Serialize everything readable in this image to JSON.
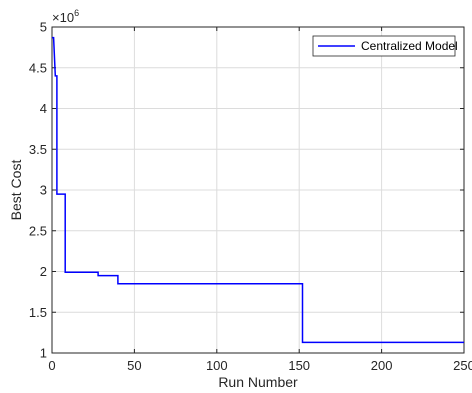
{
  "chart_data": {
    "type": "line",
    "xlabel": "Run Number",
    "ylabel": "Best Cost",
    "xlim": [
      0,
      250
    ],
    "ylim": [
      1,
      5
    ],
    "xticks": [
      "0",
      "50",
      "100",
      "150",
      "200",
      "250"
    ],
    "yticks": [
      "1",
      "1.5",
      "2",
      "2.5",
      "3",
      "3.5",
      "4",
      "4.5",
      "5"
    ],
    "y_multiplier": {
      "base": "×10",
      "exponent": "6"
    },
    "grid": true,
    "legend_position": "top-right",
    "series": [
      {
        "name": "Centralized Model",
        "color": "#0000ff",
        "x": [
          0,
          1,
          2,
          3,
          3,
          8,
          8,
          28,
          28,
          40,
          40,
          152,
          152,
          250
        ],
        "y": [
          4.87,
          4.87,
          4.4,
          4.4,
          2.95,
          2.95,
          1.99,
          1.99,
          1.95,
          1.95,
          1.85,
          1.85,
          1.13,
          1.13
        ]
      }
    ]
  }
}
